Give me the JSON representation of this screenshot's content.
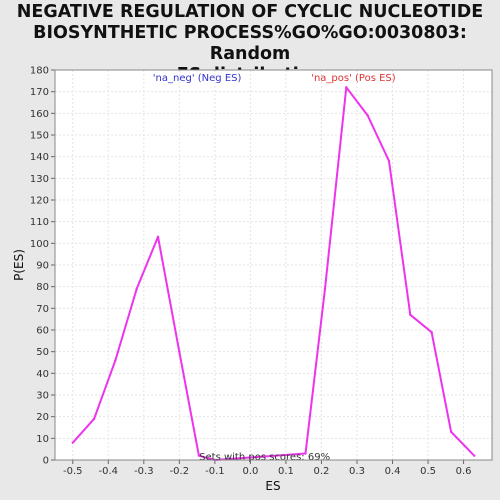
{
  "chart_data": {
    "type": "line",
    "title_lines": [
      "NEGATIVE REGULATION OF CYCLIC NUCLEOTIDE",
      "BIOSYNTHETIC PROCESS%GO%GO:0030803: Random",
      "ES distribution"
    ],
    "xlabel": "ES",
    "ylabel": "P(ES)",
    "xlim": [
      -0.55,
      0.68
    ],
    "ylim": [
      0,
      180
    ],
    "x_ticks": [
      "-0.5",
      "-0.4",
      "-0.3",
      "-0.2",
      "-0.1",
      "0.0",
      "0.1",
      "0.2",
      "0.3",
      "0.4",
      "0.5",
      "0.6"
    ],
    "y_ticks": [
      "0",
      "10",
      "20",
      "30",
      "40",
      "50",
      "60",
      "70",
      "80",
      "90",
      "100",
      "110",
      "120",
      "130",
      "140",
      "150",
      "160",
      "170",
      "180"
    ],
    "grid": true,
    "series": [
      {
        "color": "#ee33ee",
        "x": [
          -0.5,
          -0.44,
          -0.38,
          -0.32,
          -0.26,
          -0.2,
          -0.145,
          -0.1,
          0.155,
          0.21,
          0.27,
          0.33,
          0.39,
          0.45,
          0.51,
          0.565,
          0.63
        ],
        "y": [
          8,
          19,
          46,
          79,
          103,
          50,
          2,
          0,
          3,
          79,
          172,
          159,
          138,
          67,
          59,
          13,
          2
        ]
      }
    ],
    "annotations": [
      {
        "text": "'na_neg' (Neg ES)",
        "color": "#3333cc",
        "x": -0.15
      },
      {
        "text": "'na_pos' (Pos ES)",
        "color": "#dd3333",
        "x": 0.29
      },
      {
        "text": "Sets with pos scores: 69%",
        "color": "#333333",
        "x": 0.04
      }
    ]
  }
}
